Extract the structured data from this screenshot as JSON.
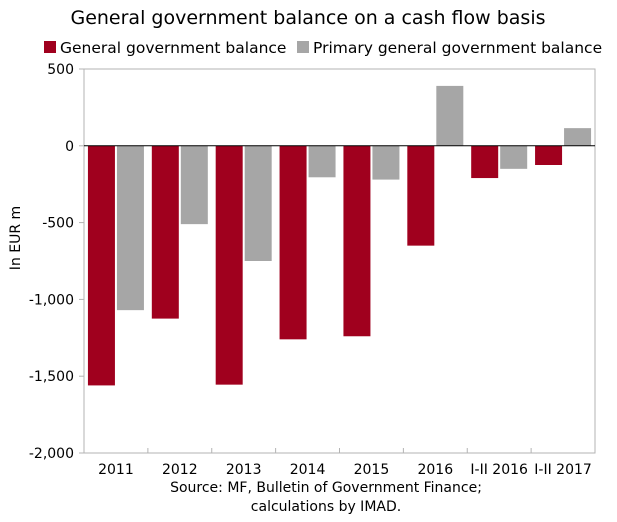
{
  "chart_data": {
    "type": "bar",
    "title": "General government balance on a cash flow basis",
    "ylabel": "In EUR m",
    "xlabel": "",
    "categories": [
      "2011",
      "2012",
      "2013",
      "2014",
      "2015",
      "2016",
      "I-II 2016",
      "I-II 2017"
    ],
    "series": [
      {
        "name": "General government balance",
        "color": "#a0001e",
        "values": [
          -1560,
          -1125,
          -1555,
          -1260,
          -1240,
          -650,
          -210,
          -125
        ]
      },
      {
        "name": "Primary general government balance",
        "color": "#a6a6a6",
        "values": [
          -1070,
          -510,
          -750,
          -205,
          -220,
          390,
          -150,
          115
        ]
      }
    ],
    "ylim": [
      -2000,
      500
    ],
    "yticks": [
      500,
      0,
      -500,
      -1000,
      -1500,
      -2000
    ],
    "ytick_labels": [
      "500",
      "0",
      "-500",
      "-1,000",
      "-1,500",
      "-2,000"
    ],
    "grid": false,
    "legend_position": "top",
    "source_lines": [
      "Source: MF, Bulletin of Government Finance;",
      "calculations by IMAD."
    ]
  }
}
